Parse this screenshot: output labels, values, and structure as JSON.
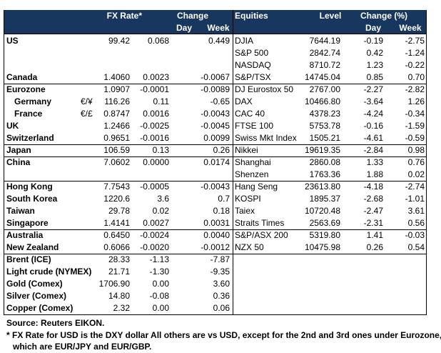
{
  "table": {
    "header": {
      "fx_rate": "FX Rate*",
      "change": "Change",
      "day": "Day",
      "week": "Week",
      "equities": "Equities",
      "level": "Level",
      "change_pct": "Change (%)",
      "eq_day": "Day",
      "eq_week": "Week"
    },
    "groups": [
      {
        "rows": [
          {
            "country": "US",
            "rate": "99.42",
            "day": "0.068",
            "week": "0.449",
            "index": "DJIA",
            "level": "7644.19",
            "eq_day": "-0.19",
            "eq_week": "-2.75"
          },
          {
            "index": "S&P 500",
            "level": "2842.74",
            "eq_day": "0.42",
            "eq_week": "-1.24"
          },
          {
            "index": "NASDAQ",
            "level": "8710.72",
            "eq_day": "1.23",
            "eq_week": "-0.22"
          },
          {
            "country": "Canada",
            "rate": "1.4060",
            "day": "0.0023",
            "week": "-0.0067",
            "index": "S&P/TSX",
            "level": "14745.04",
            "eq_day": "0.85",
            "eq_week": "0.70"
          }
        ]
      },
      {
        "rows": [
          {
            "country": "Eurozone",
            "rate": "1.0907",
            "day": "-0.0001",
            "week": "-0.0089",
            "index": "DJ Eurostox 50",
            "level": "2767.00",
            "eq_day": "-2.27",
            "eq_week": "-2.82"
          },
          {
            "country": "Germany",
            "unit": "€/¥",
            "rate": "116.26",
            "day": "0.11",
            "week": "-0.65",
            "index": "DAX",
            "level": "10466.80",
            "eq_day": "-3.64",
            "eq_week": "1.26"
          },
          {
            "country": "France",
            "unit": "€/£",
            "rate": "0.8747",
            "day": "0.0016",
            "week": "-0.0043",
            "index": "CAC 40",
            "level": "4378.23",
            "eq_day": "-4.24",
            "eq_week": "-0.34"
          },
          {
            "country": "UK",
            "rate": "1.2466",
            "day": "-0.0025",
            "week": "-0.0045",
            "index": "FTSE 100",
            "level": "5753.78",
            "eq_day": "-0.16",
            "eq_week": "-1.59"
          },
          {
            "country": "Switzerland",
            "rate": "0.9651",
            "day": "-0.0016",
            "week": "0.0099",
            "index": "Swiss Mkt Index",
            "level": "1505.21",
            "eq_day": "-4.61",
            "eq_week": "-0.59"
          }
        ]
      },
      {
        "rows": [
          {
            "country": "Japan",
            "rate": "106.59",
            "day": "0.13",
            "week": "0.26",
            "index": "Nikkei",
            "level": "19619.35",
            "eq_day": "-2.84",
            "eq_week": "0.98"
          }
        ]
      },
      {
        "rows": [
          {
            "country": "China",
            "rate": "7.0602",
            "day": "0.0000",
            "week": "0.0174",
            "index": "Shanghai",
            "level": "2860.08",
            "eq_day": "1.33",
            "eq_week": "0.76"
          },
          {
            "index": "Shenzen",
            "level": "1763.36",
            "eq_day": "1.88",
            "eq_week": "0.02"
          }
        ]
      },
      {
        "rows": [
          {
            "country": "Hong Kong",
            "rate": "7.7543",
            "day": "-0.0005",
            "week": "-0.0043",
            "index": "Hang Seng",
            "level": "23613.80",
            "eq_day": "-4.18",
            "eq_week": "-2.74"
          },
          {
            "country": "South Korea",
            "rate": "1220.6",
            "day": "3.6",
            "week": "0.7",
            "index": "KOSPI",
            "level": "1895.37",
            "eq_day": "-2.68",
            "eq_week": "-1.01"
          },
          {
            "country": "Taiwan",
            "rate": "29.78",
            "day": "0.02",
            "week": "0.18",
            "index": "Taiex",
            "level": "10720.48",
            "eq_day": "-2.47",
            "eq_week": "3.61"
          },
          {
            "country": "Singapore",
            "rate": "1.4141",
            "day": "0.0027",
            "week": "0.0031",
            "index": "Straits Times",
            "level": "2563.69",
            "eq_day": "-2.31",
            "eq_week": "0.56"
          }
        ]
      },
      {
        "rows": [
          {
            "country": "Australia",
            "rate": "0.6450",
            "day": "-0.0024",
            "week": "0.0040",
            "index": "S&P/ASX 200",
            "level": "5319.80",
            "eq_day": "1.41",
            "eq_week": "-0.03"
          },
          {
            "country": "New Zealand",
            "rate": "0.6066",
            "day": "-0.0020",
            "week": "-0.0012",
            "index": "NZX 50",
            "level": "10475.98",
            "eq_day": "0.26",
            "eq_week": "0.54"
          }
        ]
      },
      {
        "rows": [
          {
            "country": "Brent (ICE)",
            "rate": "28.33",
            "day": "-1.13",
            "week": "-7.87"
          },
          {
            "country": "Light crude (NYMEX)",
            "rate": "21.71",
            "day": "-1.30",
            "week": "-9.35"
          },
          {
            "country": "Gold (Comex)",
            "rate": "1706.90",
            "day": "0.00",
            "week": "3.60"
          },
          {
            "country": "Silver (Comex)",
            "rate": "14.80",
            "day": "-0.08",
            "week": "0.36"
          },
          {
            "country": "Copper (Comex)",
            "rate": "2.32",
            "day": "0.00",
            "week": "0.06"
          }
        ]
      }
    ],
    "source": "Source:  Reuters EIKON.",
    "notes": [
      "* FX Rate for USD is the DXY dollar  All others are vs USD, except for the 2nd and 3rd ones under Eurozone,",
      "which are EUR/JPY and EUR/GBP."
    ]
  }
}
